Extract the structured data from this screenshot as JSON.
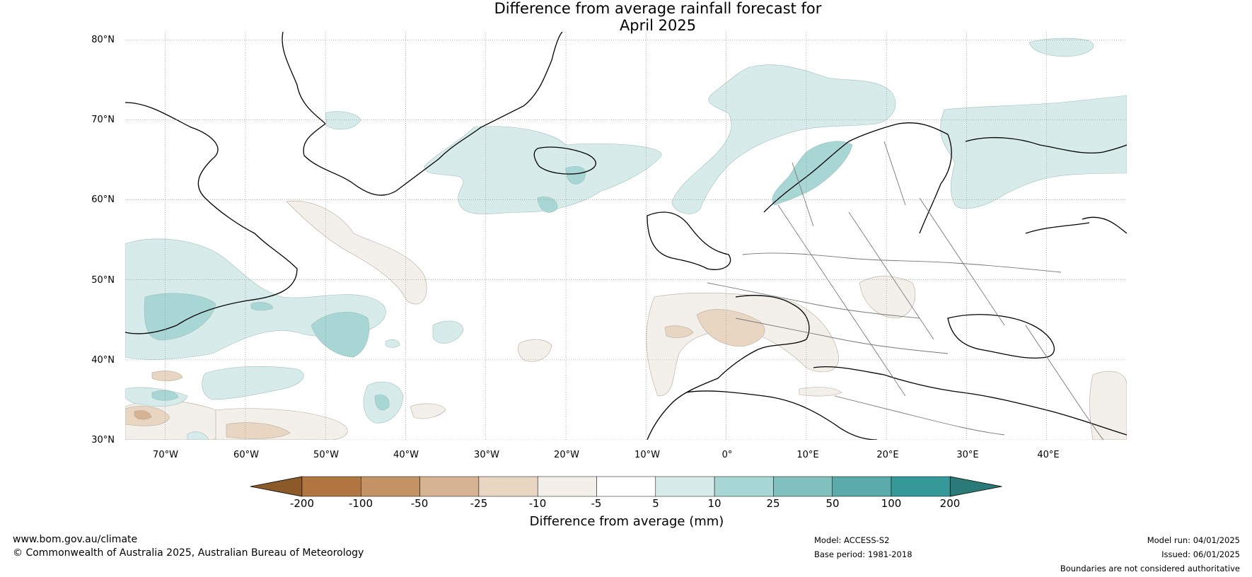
{
  "title": {
    "line1": "Difference from average rainfall forecast for",
    "line2": "April 2025"
  },
  "map": {
    "lat_labels": [
      "80°N",
      "70°N",
      "60°N",
      "50°N",
      "40°N",
      "30°N"
    ],
    "lon_labels": [
      "70°W",
      "60°W",
      "50°W",
      "40°W",
      "30°W",
      "20°W",
      "10°W",
      "0°",
      "10°E",
      "20°E",
      "30°E",
      "40°E"
    ],
    "lat_range": [
      30,
      81
    ],
    "lon_range": [
      -75,
      50
    ],
    "grid": true
  },
  "legend": {
    "title": "Difference from average (mm)",
    "ticks": [
      "-200",
      "-100",
      "-50",
      "-25",
      "-10",
      "-5",
      "5",
      "10",
      "25",
      "50",
      "100",
      "200"
    ],
    "colors": [
      "#8b5a28",
      "#b07540",
      "#c49365",
      "#d6b393",
      "#e8d5c2",
      "#f3efea",
      "#ffffff",
      "#d6ebea",
      "#a8d6d4",
      "#82c1bf",
      "#5aabaa",
      "#35999a",
      "#2a7a7a"
    ]
  },
  "footer": {
    "url": "www.bom.gov.au/climate",
    "copyright": "© Commonwealth of Australia 2025, Australian Bureau of Meteorology",
    "model": "Model: ACCESS-S2",
    "base_period": "Base period: 1981-2018",
    "model_run": "Model run: 04/01/2025",
    "issued": "Issued: 06/01/2025",
    "disclaimer": "Boundaries are not considered authoritative"
  }
}
